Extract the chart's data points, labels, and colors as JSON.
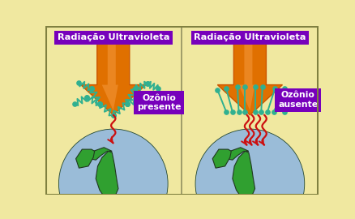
{
  "bg_color": "#f0e8a0",
  "title_bg": "#7700bb",
  "title_color": "white",
  "title_text_left": "Radiação Ultravioleta",
  "title_text_right": "Radiação Ultravioleta",
  "label_left": "Ozônio\npresente",
  "label_right": "Ozônio\nausente",
  "arrow_color_dark": "#cc5500",
  "arrow_color_mid": "#e07000",
  "arrow_color_light": "#f09030",
  "teal_color": "#30b090",
  "red_color": "#cc1010",
  "earth_ocean_top": "#a0c8e8",
  "earth_ocean_bot": "#7090c0",
  "earth_land": "#30a030",
  "earth_outline": "#203820",
  "border_color": "#808040",
  "figsize": [
    4.38,
    2.7
  ],
  "dpi": 100
}
